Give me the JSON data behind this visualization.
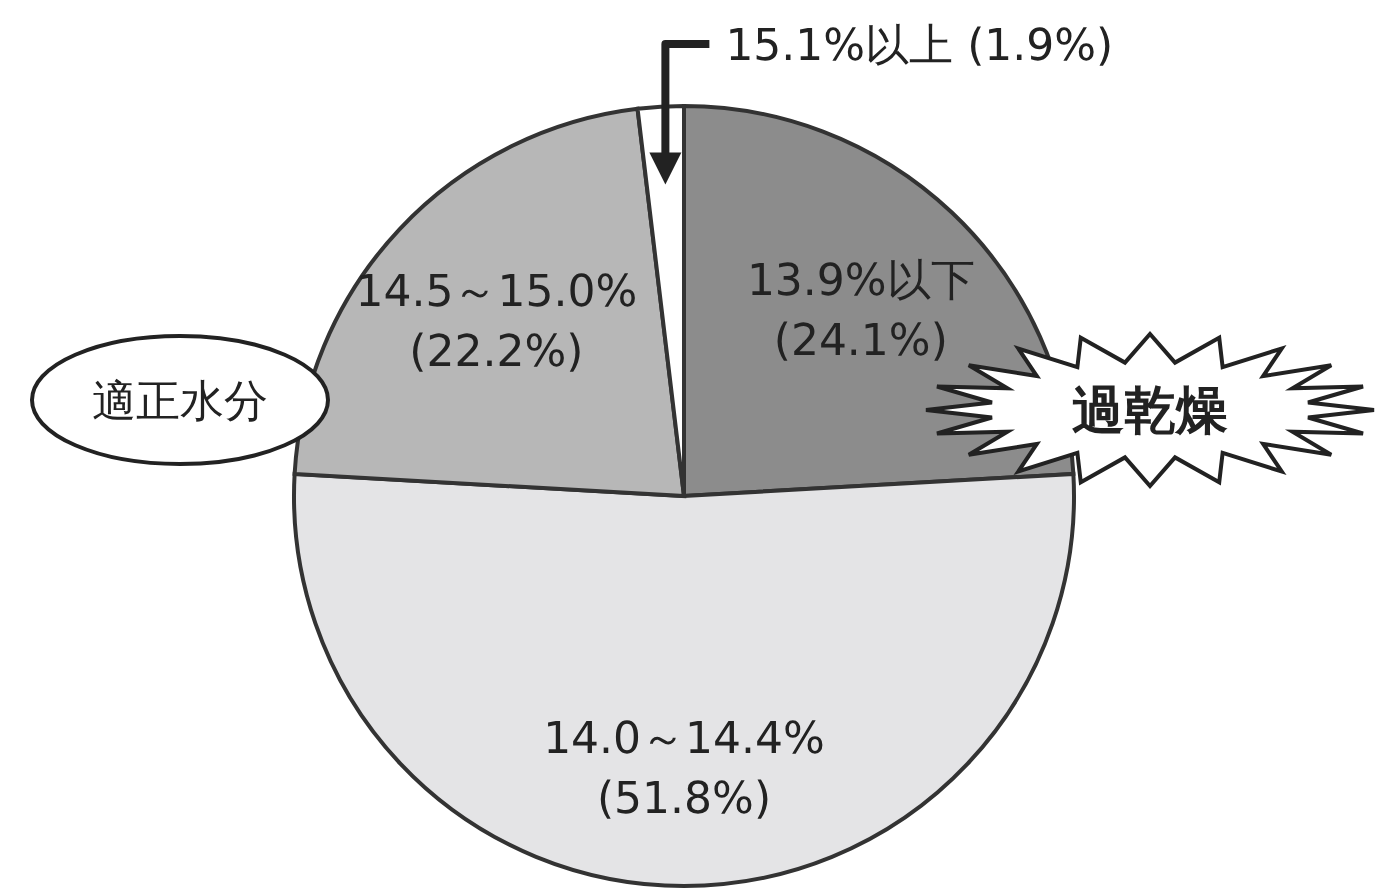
{
  "chart_data": {
    "type": "pie",
    "categories": [
      "13.9%以下",
      "14.0～14.4%",
      "14.5～15.0%",
      "15.1%以上"
    ],
    "values": [
      24.1,
      51.8,
      22.2,
      1.9
    ],
    "value_labels": [
      "(24.1%)",
      "(51.8%)",
      "(22.2%)",
      "(1.9%)"
    ],
    "colors": [
      "#8c8c8c",
      "#e4e4e6",
      "#b7b7b7",
      "#ffffff"
    ],
    "annotations": [
      "適正水分",
      "過乾燥"
    ]
  }
}
